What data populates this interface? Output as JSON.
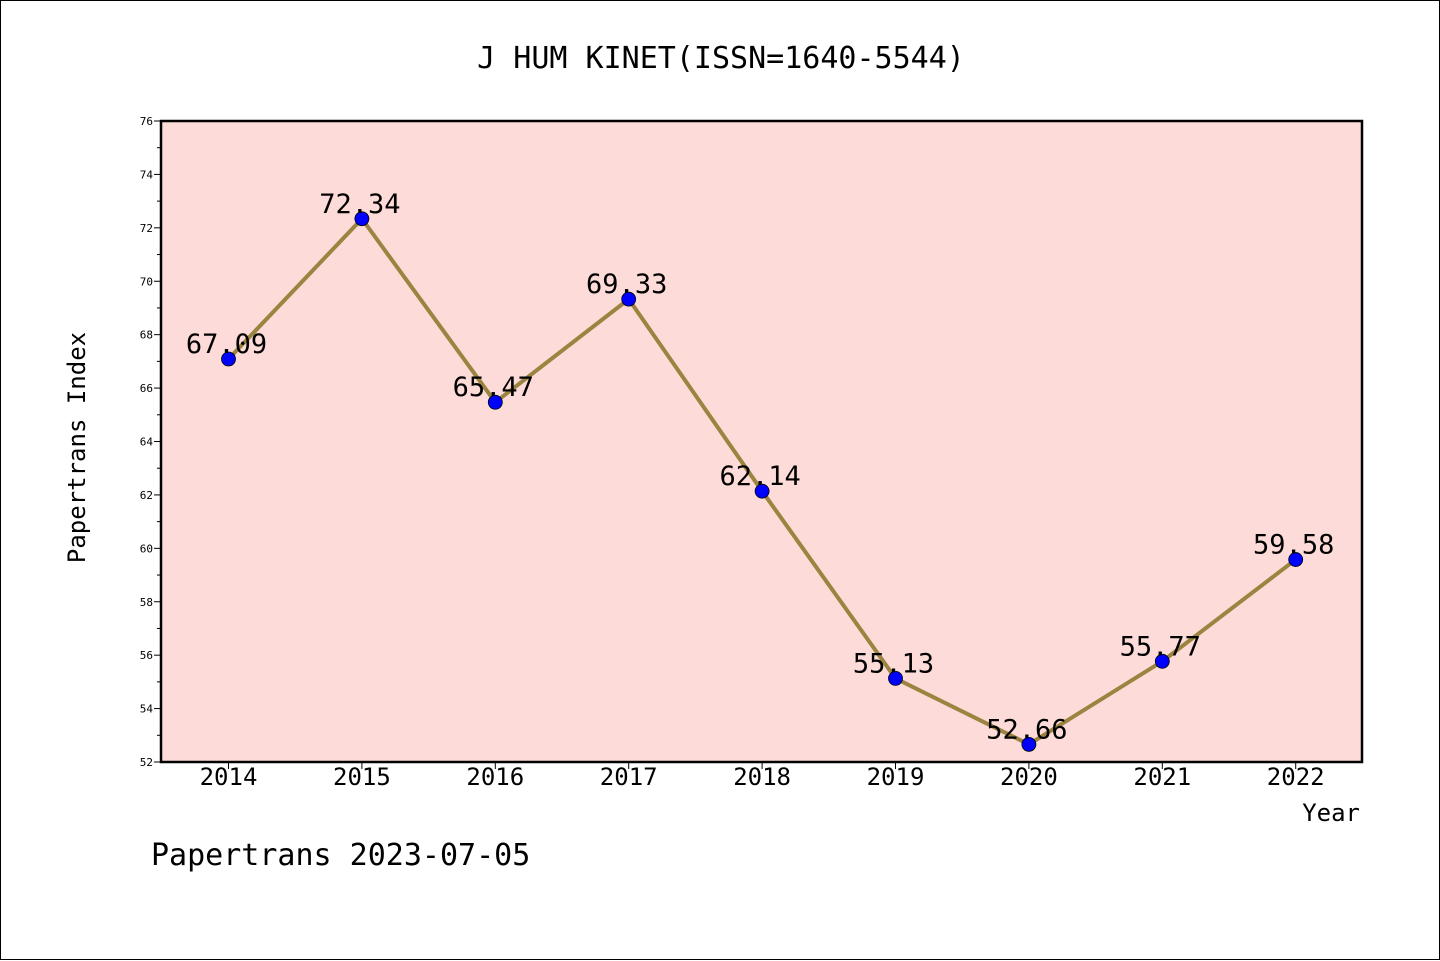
{
  "chart_data": {
    "type": "line",
    "title": "J HUM KINET(ISSN=1640-5544)",
    "xlabel": "Year",
    "ylabel": "Papertrans Index",
    "x": [
      "2014",
      "2015",
      "2016",
      "2017",
      "2018",
      "2019",
      "2020",
      "2021",
      "2022"
    ],
    "series": [
      {
        "values": [
          67.09,
          72.34,
          65.47,
          69.33,
          62.14,
          55.13,
          52.66,
          55.77,
          59.58
        ],
        "labels": [
          "67.09",
          "72.34",
          "65.47",
          "69.33",
          "62.14",
          "55.13",
          "52.66",
          "55.77",
          "59.58"
        ]
      }
    ],
    "ylim": [
      52,
      76
    ],
    "yticks": [
      52,
      54,
      56,
      58,
      60,
      62,
      64,
      66,
      68,
      70,
      72,
      74,
      76
    ],
    "grid": false,
    "colors": {
      "plot_background": "#fddbd8",
      "line": "#9a8440",
      "marker": "#0000ff"
    }
  },
  "footer": "Papertrans 2023-07-05"
}
